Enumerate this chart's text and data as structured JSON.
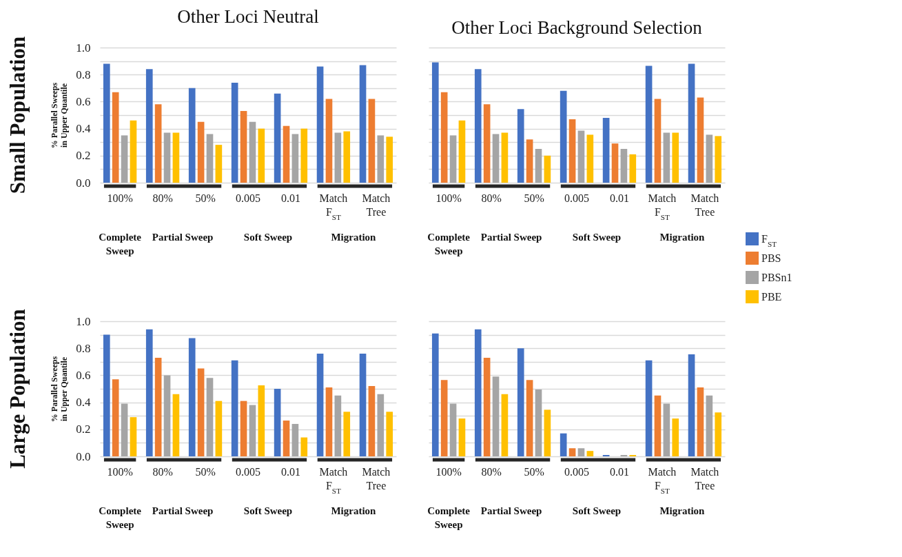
{
  "chart_data": [
    {
      "type": "bar",
      "title": "Other Loci Neutral",
      "ylabel": "% Parallel Sweeps in Upper Quantile",
      "categories": [
        "100%",
        "80%",
        "50%",
        "0.005",
        "0.01",
        "Match F$_{ST}$",
        "Match Tree"
      ],
      "series": [
        {
          "color": "#4472c4",
          "values": [
            0.88,
            0.84,
            0.7,
            0.74,
            0.66,
            0.86,
            0.87
          ]
        },
        {
          "color": "#ed7d31",
          "values": [
            0.67,
            0.58,
            0.45,
            0.53,
            0.42,
            0.62,
            0.62
          ]
        },
        {
          "color": "#a5a5a5",
          "values": [
            0.35,
            0.37,
            0.36,
            0.45,
            0.36,
            0.37,
            0.35
          ]
        },
        {
          "color": "#ffc000",
          "values": [
            0.46,
            0.37,
            0.28,
            0.4,
            0.4,
            0.38,
            0.34
          ]
        }
      ],
      "ylim": [
        0,
        1
      ],
      "yticks": [
        {
          "value": 0,
          "label": "0.0"
        },
        {
          "value": 0.1,
          "label": null
        },
        {
          "value": 0.2,
          "label": "0.2"
        },
        {
          "value": 0.3,
          "label": null
        },
        {
          "value": 0.4,
          "label": "0.4"
        },
        {
          "value": 0.5,
          "label": null
        },
        {
          "value": 0.6,
          "label": "0.6"
        },
        {
          "value": 0.7,
          "label": null
        },
        {
          "value": 0.8,
          "label": "0.8"
        },
        {
          "value": 0.9,
          "label": null
        },
        {
          "value": 1,
          "label": "1.0"
        }
      ],
      "grid": "y",
      "annotations": [
        "Small Population",
        "Complete Sweep",
        "Partial Sweep",
        "Soft Sweep",
        "Migration"
      ]
    },
    {
      "type": "bar",
      "title": "Other Loci Background Selection",
      "categories": [
        "100%",
        "80%",
        "50%",
        "0.005",
        "0.01",
        "Match F$_{ST}$",
        "Match Tree"
      ],
      "series": [
        {
          "name": "F$_{ST}$",
          "color": "#4472c4",
          "values": [
            0.89,
            0.84,
            0.545,
            0.68,
            0.48,
            0.865,
            0.88
          ]
        },
        {
          "name": "PBS",
          "color": "#ed7d31",
          "values": [
            0.67,
            0.58,
            0.32,
            0.47,
            0.29,
            0.62,
            0.63
          ]
        },
        {
          "name": "PBSn1",
          "color": "#a5a5a5",
          "values": [
            0.35,
            0.36,
            0.25,
            0.385,
            0.25,
            0.37,
            0.355
          ]
        },
        {
          "name": "PBE",
          "color": "#ffc000",
          "values": [
            0.46,
            0.37,
            0.2,
            0.355,
            0.21,
            0.37,
            0.345
          ]
        }
      ],
      "ylim": [
        0,
        1
      ],
      "yticks": [
        {
          "value": 0,
          "label": null
        },
        {
          "value": 0.1,
          "label": null
        },
        {
          "value": 0.2,
          "label": null
        },
        {
          "value": 0.3,
          "label": null
        },
        {
          "value": 0.4,
          "label": null
        },
        {
          "value": 0.5,
          "label": null
        },
        {
          "value": 0.6,
          "label": null
        },
        {
          "value": 0.7,
          "label": null
        },
        {
          "value": 0.8,
          "label": null
        },
        {
          "value": 0.9,
          "label": null
        },
        {
          "value": 1,
          "label": null
        }
      ],
      "tick_labels": "x",
      "grid": "y",
      "legend": "right",
      "annotations": [
        "Complete Sweep",
        "Partial Sweep",
        "Soft Sweep",
        "Migration"
      ]
    },
    {
      "type": "bar",
      "ylabel": "% Parallel Sweeps in Upper Quantile",
      "categories": [
        "100%",
        "80%",
        "50%",
        "0.005",
        "0.01",
        "Match F$_{ST}$",
        "Match Tree"
      ],
      "series": [
        {
          "color": "#4472c4",
          "values": [
            0.9,
            0.94,
            0.875,
            0.71,
            0.5,
            0.76,
            0.76
          ]
        },
        {
          "color": "#ed7d31",
          "values": [
            0.57,
            0.73,
            0.65,
            0.41,
            0.265,
            0.51,
            0.52
          ]
        },
        {
          "color": "#a5a5a5",
          "values": [
            0.39,
            0.6,
            0.58,
            0.38,
            0.24,
            0.45,
            0.46
          ]
        },
        {
          "color": "#ffc000",
          "values": [
            0.29,
            0.46,
            0.41,
            0.525,
            0.14,
            0.33,
            0.33
          ]
        }
      ],
      "ylim": [
        0,
        1
      ],
      "yticks": [
        {
          "value": 0,
          "label": "0.0"
        },
        {
          "value": 0.1,
          "label": null
        },
        {
          "value": 0.2,
          "label": "0.2"
        },
        {
          "value": 0.3,
          "label": null
        },
        {
          "value": 0.4,
          "label": "0.4"
        },
        {
          "value": 0.5,
          "label": null
        },
        {
          "value": 0.6,
          "label": "0.6"
        },
        {
          "value": 0.7,
          "label": null
        },
        {
          "value": 0.8,
          "label": "0.8"
        },
        {
          "value": 0.9,
          "label": null
        },
        {
          "value": 1,
          "label": "1.0"
        }
      ],
      "grid": "y",
      "annotations": [
        "Large Population",
        "Complete Sweep",
        "Partial Sweep",
        "Soft Sweep",
        "Migration"
      ]
    },
    {
      "type": "bar",
      "categories": [
        "100%",
        "80%",
        "50%",
        "0.005",
        "0.01",
        "Match F$_{ST}$",
        "Match Tree"
      ],
      "series": [
        {
          "color": "#4472c4",
          "values": [
            0.91,
            0.94,
            0.8,
            0.17,
            0.01,
            0.71,
            0.755
          ]
        },
        {
          "color": "#ed7d31",
          "values": [
            0.565,
            0.73,
            0.565,
            0.06,
            0,
            0.45,
            0.51
          ]
        },
        {
          "color": "#a5a5a5",
          "values": [
            0.39,
            0.59,
            0.495,
            0.06,
            0.01,
            0.39,
            0.45
          ]
        },
        {
          "color": "#ffc000",
          "values": [
            0.28,
            0.46,
            0.345,
            0.04,
            0.01,
            0.28,
            0.325
          ]
        }
      ],
      "ylim": [
        0,
        1
      ],
      "yticks": [
        {
          "value": 0,
          "label": null
        },
        {
          "value": 0.1,
          "label": null
        },
        {
          "value": 0.2,
          "label": null
        },
        {
          "value": 0.3,
          "label": null
        },
        {
          "value": 0.4,
          "label": null
        },
        {
          "value": 0.5,
          "label": null
        },
        {
          "value": 0.6,
          "label": null
        },
        {
          "value": 0.7,
          "label": null
        },
        {
          "value": 0.8,
          "label": null
        },
        {
          "value": 0.9,
          "label": null
        },
        {
          "value": 1,
          "label": null
        }
      ],
      "tick_labels": "x",
      "grid": "y",
      "annotations": [
        "Complete Sweep",
        "Partial Sweep",
        "Soft Sweep",
        "Migration"
      ]
    }
  ]
}
